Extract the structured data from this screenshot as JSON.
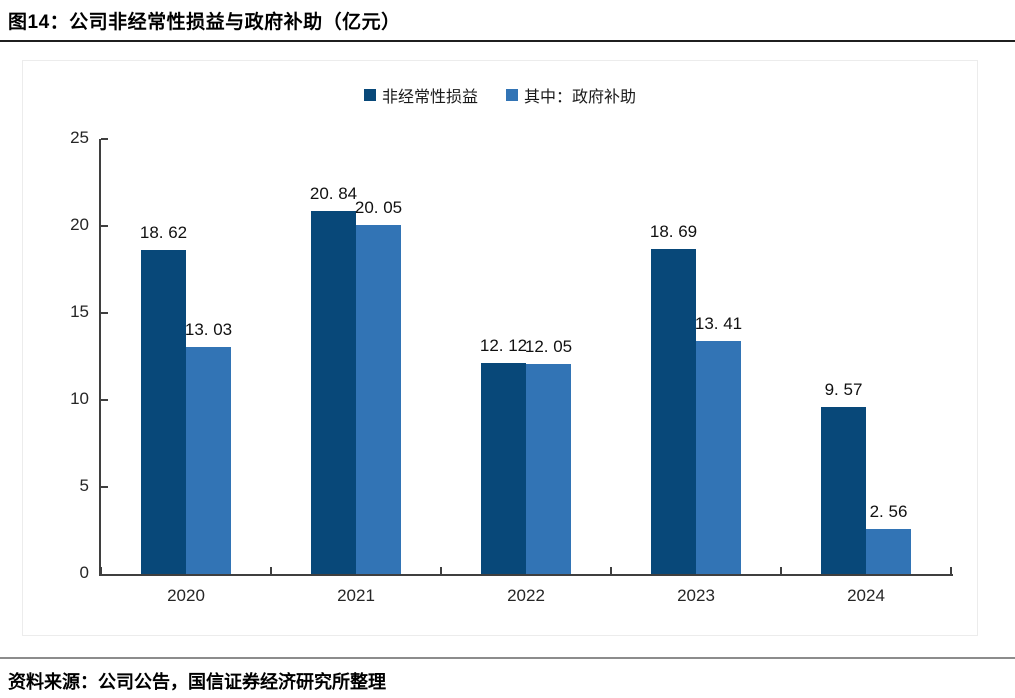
{
  "title": "图14：公司非经常性损益与政府补助（亿元）",
  "source": "资料来源：公司公告，国信证券经济研究所整理",
  "colors": {
    "series_dark": "#084879",
    "series_light": "#3274b5",
    "axis": "#3f3f3f",
    "panel_border": "#ececec",
    "title_rule": "#1f1f1f",
    "footer_rule": "#8c8c8c"
  },
  "chart_data": {
    "type": "bar",
    "categories": [
      "2020",
      "2021",
      "2022",
      "2023",
      "2024"
    ],
    "series": [
      {
        "name": "非经常性损益",
        "color": "#084879",
        "values": [
          18.62,
          20.84,
          12.12,
          18.69,
          9.57
        ],
        "labels": [
          "18. 62",
          "20. 84",
          "12. 12",
          "18. 69",
          "9. 57"
        ]
      },
      {
        "name": "其中：政府补助",
        "color": "#3274b5",
        "values": [
          13.03,
          20.05,
          12.05,
          13.41,
          2.56
        ],
        "labels": [
          "13. 03",
          "20. 05",
          "12. 05",
          "13. 41",
          "2. 56"
        ]
      }
    ],
    "title": "公司非经常性损益与政府补助（亿元）",
    "xlabel": "",
    "ylabel": "",
    "ylim": [
      0,
      25
    ],
    "yticks": [
      0,
      5,
      10,
      15,
      20,
      25
    ],
    "grid": false,
    "legend_position": "top",
    "tick_direction": "in"
  }
}
